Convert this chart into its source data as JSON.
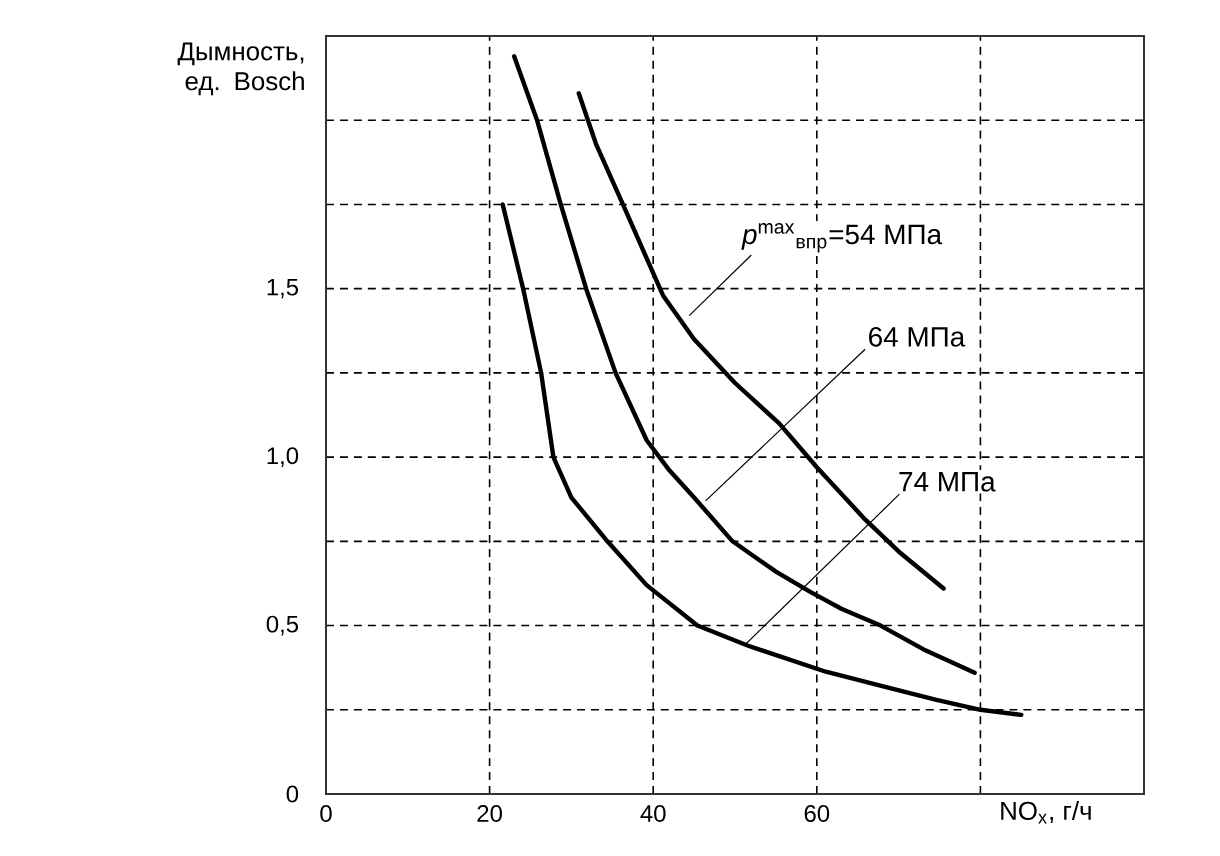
{
  "chart_data": {
    "type": "line",
    "ylabel": "Дымность, ед. Bosch",
    "xlabel": "NO$_{x}$, г/ч",
    "xlim": [
      0,
      100
    ],
    "ylim": [
      0,
      2.25
    ],
    "xticks": [
      0,
      20,
      40,
      60,
      {
        "value": 80,
        "label": null
      }
    ],
    "yticks": [
      0,
      {
        "value": 0.25,
        "label": null
      },
      {
        "value": 0.5,
        "label": "0,5"
      },
      {
        "value": 0.75,
        "label": null
      },
      {
        "value": 1.0,
        "label": "1,0"
      },
      {
        "value": 1.25,
        "label": null
      },
      {
        "value": 1.5,
        "label": "1,5"
      },
      {
        "value": 1.75,
        "label": null
      },
      {
        "value": 2.0,
        "label": null
      }
    ],
    "grid": true,
    "series": [
      {
        "color": "#000000",
        "x": [
          30.9,
          33,
          36.3,
          41.2,
          45,
          50,
          55.4,
          60,
          65.9,
          70,
          75.5
        ],
        "values": [
          2.08,
          1.93,
          1.75,
          1.48,
          1.35,
          1.22,
          1.1,
          0.97,
          0.815,
          0.72,
          0.61
        ]
      },
      {
        "color": "#000000",
        "x": [
          23,
          25.8,
          28.7,
          31.8,
          35.4,
          39.2,
          42,
          45,
          49.7,
          55,
          59.2,
          63,
          67.8,
          73,
          79.3
        ],
        "values": [
          2.19,
          2.0,
          1.75,
          1.5,
          1.25,
          1.05,
          0.96,
          0.88,
          0.75,
          0.66,
          0.6,
          0.55,
          0.5,
          0.43,
          0.36
        ]
      },
      {
        "color": "#000000",
        "x": [
          21.6,
          24.1,
          26.3,
          27.8,
          30,
          34.4,
          39.2,
          45.4,
          51.6,
          61.1,
          68,
          74.5,
          80,
          85
        ],
        "values": [
          1.75,
          1.5,
          1.25,
          1.0,
          0.88,
          0.75,
          0.62,
          0.5,
          0.44,
          0.363,
          0.32,
          0.28,
          0.25,
          0.235
        ]
      }
    ],
    "annotations": [
      {
        "text": "*p*$^{max}$$_{впр}$=54 МПа",
        "x": 44.4,
        "y": 1.42
      },
      {
        "text": "64 МПа",
        "x": 46.4,
        "y": 0.87
      },
      {
        "text": "74 МПа",
        "x": 51.1,
        "y": 0.44
      }
    ]
  }
}
